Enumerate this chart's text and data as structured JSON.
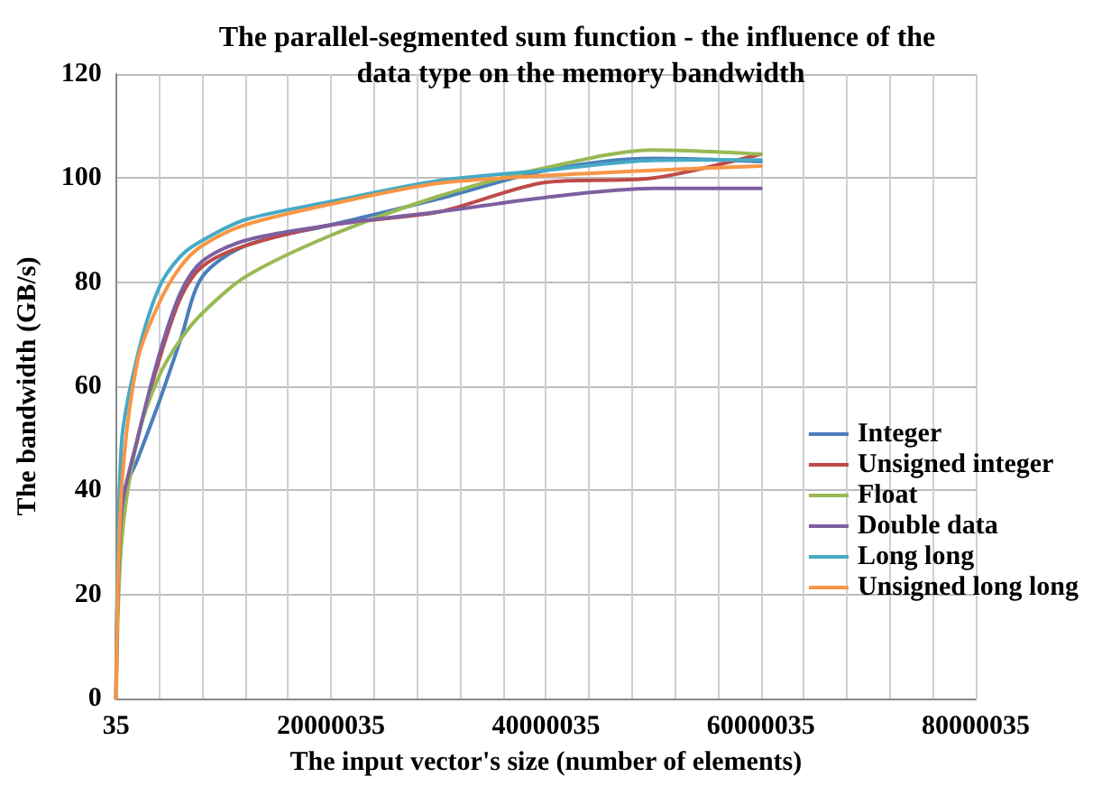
{
  "chart_data": {
    "type": "line",
    "title": "The parallel-segmented sum function - the influence of the data type on the memory bandwidth",
    "xlabel": "The input vector's size (number of elements)",
    "ylabel": "The bandwidth (GB/s)",
    "x": [
      35,
      500035,
      2000035,
      4000035,
      6000035,
      8000035,
      12000035,
      20000035,
      30000035,
      40000035,
      50000035,
      60000035
    ],
    "series": [
      {
        "name": "Integer",
        "color": "#4a7ebb",
        "values": [
          0,
          38,
          46,
          57,
          69,
          81,
          87,
          91,
          96,
          101.5,
          103.8,
          103.2
        ]
      },
      {
        "name": "Unsigned integer",
        "color": "#be4b48",
        "values": [
          0,
          35,
          50,
          65,
          77,
          83,
          87,
          91,
          93.5,
          99.2,
          100,
          104.6
        ]
      },
      {
        "name": "Float",
        "color": "#98b954",
        "values": [
          0,
          30,
          50,
          62,
          69,
          74,
          81,
          89,
          96.5,
          102,
          105.4,
          104.6
        ]
      },
      {
        "name": "Double data",
        "color": "#7d60a0",
        "values": [
          0,
          36,
          50,
          66,
          78,
          84,
          88,
          91,
          93.5,
          96.3,
          98,
          98
        ]
      },
      {
        "name": "Long long",
        "color": "#46aac5",
        "values": [
          0,
          49,
          66,
          79,
          85,
          88,
          92,
          95.5,
          99.5,
          101.5,
          103.4,
          103.5
        ]
      },
      {
        "name": "Unsigned long long",
        "color": "#f79646",
        "values": [
          0,
          40,
          65,
          76,
          83,
          87,
          91,
          95,
          99,
          100.5,
          101.5,
          102.3
        ]
      }
    ],
    "xlim": [
      35,
      80000035
    ],
    "xticks": [
      35,
      {
        "value": 4000035,
        "label": null
      },
      {
        "value": 8000035,
        "label": null
      },
      {
        "value": 12000035,
        "label": null
      },
      {
        "value": 16000035,
        "label": null
      },
      20000035,
      {
        "value": 24000035,
        "label": null
      },
      {
        "value": 28000035,
        "label": null
      },
      {
        "value": 32000035,
        "label": null
      },
      {
        "value": 36000035,
        "label": null
      },
      40000035,
      {
        "value": 44000035,
        "label": null
      },
      {
        "value": 48000035,
        "label": null
      },
      {
        "value": 52000035,
        "label": null
      },
      {
        "value": 56000035,
        "label": null
      },
      60000035,
      {
        "value": 64000035,
        "label": null
      },
      {
        "value": 68000035,
        "label": null
      },
      {
        "value": 72000035,
        "label": null
      },
      {
        "value": 76000035,
        "label": null
      },
      80000035
    ],
    "ylim": [
      0,
      120
    ],
    "yticks": [
      0,
      20,
      40,
      60,
      80,
      100,
      120
    ],
    "grid": true,
    "legend": "right",
    "marker": "none",
    "line_style": "solid"
  }
}
